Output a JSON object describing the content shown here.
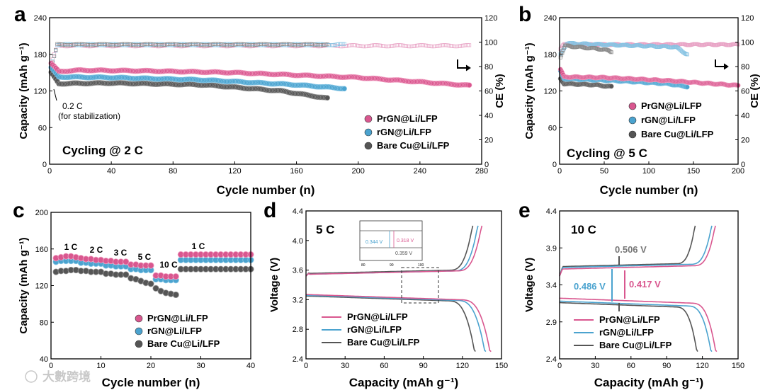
{
  "watermark": "大數跨境",
  "colors": {
    "pink": "#d9578f",
    "pink_light": "#f2a6c6",
    "blue": "#4ba3cf",
    "blue_light": "#8fcbe8",
    "gray": "#555555",
    "gray_light": "#9a9a9a",
    "ce_pink": "#e8a3c5",
    "ce_blue": "#87c3e3",
    "ce_gray": "#8a8a8a"
  },
  "chart_data": [
    {
      "panel": "a",
      "type": "scatter",
      "xlabel": "Cycle number (n)",
      "ylabel": "Capacity (mAh g⁻¹)",
      "y2label": "CE (%)",
      "xlim": [
        0,
        280
      ],
      "ylim": [
        0,
        240
      ],
      "y2lim": [
        0,
        120
      ],
      "xticks": [
        "0",
        "40",
        "80",
        "120",
        "160",
        "200",
        "240",
        "280"
      ],
      "yticks": [
        "0",
        "60",
        "120",
        "180",
        "240"
      ],
      "y2ticks": [
        "0",
        "20",
        "40",
        "60",
        "80",
        "100",
        "120"
      ],
      "annotation": "Cycling @ 2 C",
      "note": [
        "0.2 C",
        "(for stabilization)"
      ],
      "legend": [
        "PrGN@Li/LFP",
        "rGN@Li/LFP",
        "Bare Cu@Li/LFP"
      ],
      "series": [
        {
          "name": "PrGN@Li/LFP",
          "cycles": 272,
          "capacity": [
            [
              1,
              165
            ],
            [
              6,
              152
            ],
            [
              20,
              154
            ],
            [
              60,
              153
            ],
            [
              120,
              150
            ],
            [
              200,
              142
            ],
            [
              272,
              129
            ]
          ],
          "ce": [
            [
              1,
              82
            ],
            [
              5,
              97
            ],
            [
              272,
              97
            ]
          ]
        },
        {
          "name": "rGN@Li/LFP",
          "cycles": 191,
          "capacity": [
            [
              1,
              158
            ],
            [
              6,
              143
            ],
            [
              40,
              142
            ],
            [
              100,
              138
            ],
            [
              160,
              130
            ],
            [
              191,
              124
            ]
          ],
          "ce": [
            [
              1,
              80
            ],
            [
              5,
              98
            ],
            [
              191,
              98
            ]
          ]
        },
        {
          "name": "Bare Cu@Li/LFP",
          "cycles": 180,
          "capacity": [
            [
              1,
              150
            ],
            [
              6,
              132
            ],
            [
              40,
              133
            ],
            [
              100,
              130
            ],
            [
              150,
              120
            ],
            [
              180,
              108
            ]
          ],
          "ce": [
            [
              1,
              78
            ],
            [
              5,
              98
            ],
            [
              180,
              98
            ]
          ]
        }
      ]
    },
    {
      "panel": "b",
      "type": "scatter",
      "xlabel": "Cycle number (n)",
      "ylabel": "Capacity (mAh g⁻¹)",
      "y2label": "CE (%)",
      "xlim": [
        0,
        200
      ],
      "ylim": [
        0,
        240
      ],
      "y2lim": [
        0,
        120
      ],
      "xticks": [
        "0",
        "25",
        "50",
        "75",
        "100",
        "125",
        "150",
        "175",
        "200"
      ],
      "yticks": [
        "0",
        "60",
        "120",
        "180",
        "240"
      ],
      "y2ticks": [
        "0",
        "20",
        "40",
        "60",
        "80",
        "100",
        "120"
      ],
      "annotation": "Cycling @ 5 C",
      "legend": [
        "PrGN@Li/LFP",
        "rGN@Li/LFP",
        "Bare Cu@Li/LFP"
      ],
      "series": [
        {
          "name": "PrGN@Li/LFP",
          "cycles": 200,
          "capacity": [
            [
              1,
              155
            ],
            [
              5,
              143
            ],
            [
              50,
              142
            ],
            [
              120,
              137
            ],
            [
              200,
              129
            ]
          ],
          "ce": [
            [
              1,
              94
            ],
            [
              5,
              98
            ],
            [
              200,
              98
            ]
          ]
        },
        {
          "name": "rGN@Li/LFP",
          "cycles": 143,
          "capacity": [
            [
              1,
              152
            ],
            [
              5,
              140
            ],
            [
              60,
              137
            ],
            [
              120,
              132
            ],
            [
              143,
              127
            ]
          ],
          "ce": [
            [
              1,
              90
            ],
            [
              8,
              99
            ],
            [
              130,
              96
            ],
            [
              143,
              90
            ]
          ]
        },
        {
          "name": "Bare Cu@Li/LFP",
          "cycles": 58,
          "capacity": [
            [
              1,
              140
            ],
            [
              5,
              132
            ],
            [
              40,
              130
            ],
            [
              58,
              127
            ]
          ],
          "ce": [
            [
              1,
              88
            ],
            [
              6,
              97
            ],
            [
              50,
              94
            ],
            [
              58,
              92
            ]
          ]
        }
      ]
    },
    {
      "panel": "c",
      "type": "scatter",
      "xlabel": "Cycle number (n)",
      "ylabel": "Capacity (mAh g⁻¹)",
      "xlim": [
        0,
        40
      ],
      "ylim": [
        40,
        200
      ],
      "xticks": [
        "0",
        "10",
        "20",
        "30",
        "40"
      ],
      "yticks": [
        "40",
        "80",
        "120",
        "160",
        "200"
      ],
      "rate_labels": [
        "1 C",
        "2 C",
        "3 C",
        "5 C",
        "10 C",
        "1 C"
      ],
      "legend": [
        "PrGN@Li/LFP",
        "rGN@Li/LFP",
        "Bare Cu@Li/LFP"
      ],
      "series": [
        {
          "name": "PrGN@Li/LFP",
          "capacity": [
            150,
            151,
            152,
            152,
            151,
            150,
            149,
            149,
            148,
            148,
            147,
            147,
            146,
            146,
            146,
            143,
            143,
            142,
            142,
            142,
            131,
            131,
            130,
            130,
            130,
            154,
            154,
            154,
            154,
            154,
            154,
            154,
            154,
            154,
            154,
            154,
            154,
            154,
            154,
            154
          ]
        },
        {
          "name": "rGN@Li/LFP",
          "capacity": [
            146,
            147,
            147,
            147,
            147,
            145,
            145,
            144,
            144,
            144,
            142,
            142,
            141,
            141,
            141,
            138,
            138,
            137,
            137,
            137,
            127,
            127,
            126,
            126,
            126,
            148,
            148,
            148,
            148,
            148,
            148,
            148,
            148,
            148,
            148,
            148,
            148,
            148,
            148,
            148
          ]
        },
        {
          "name": "Bare Cu@Li/LFP",
          "capacity": [
            135,
            136,
            136,
            137,
            137,
            136,
            136,
            135,
            135,
            135,
            133,
            133,
            132,
            132,
            132,
            128,
            127,
            125,
            123,
            122,
            117,
            114,
            112,
            111,
            110,
            138,
            138,
            138,
            138,
            138,
            138,
            138,
            138,
            138,
            138,
            138,
            138,
            138,
            138,
            138
          ]
        }
      ]
    },
    {
      "panel": "d",
      "type": "line",
      "xlabel": "Capacity (mAh g⁻¹)",
      "ylabel": "Voltage (V)",
      "xlim": [
        0,
        150
      ],
      "ylim": [
        2.4,
        4.4
      ],
      "xticks": [
        "0",
        "30",
        "60",
        "90",
        "120",
        "150"
      ],
      "yticks": [
        "2.4",
        "2.8",
        "3.2",
        "3.6",
        "4.0",
        "4.4"
      ],
      "annotation": "5 C",
      "legend": [
        "PrGN@Li/LFP",
        "rGN@Li/LFP",
        "Bare Cu@Li/LFP"
      ],
      "inset": {
        "xticks": [
          "80",
          "90",
          "100"
        ],
        "labels": [
          "0.344 V",
          "0.318 V",
          "0.359 V"
        ]
      },
      "series": [
        {
          "name": "PrGN@Li/LFP",
          "charge_end": 135,
          "discharge_end": 142,
          "plateau_charge": 3.57,
          "plateau_discharge": 3.27
        },
        {
          "name": "rGN@Li/LFP",
          "charge_end": 132,
          "discharge_end": 138,
          "plateau_charge": 3.57,
          "plateau_discharge": 3.26
        },
        {
          "name": "Bare Cu@Li/LFP",
          "charge_end": 128,
          "discharge_end": 130,
          "plateau_charge": 3.58,
          "plateau_discharge": 3.25
        }
      ]
    },
    {
      "panel": "e",
      "type": "line",
      "xlabel": "Capacity (mAh g⁻¹)",
      "ylabel": "Voltage (V)",
      "xlim": [
        0,
        150
      ],
      "ylim": [
        2.4,
        4.4
      ],
      "xticks": [
        "0",
        "30",
        "60",
        "90",
        "120",
        "150"
      ],
      "yticks": [
        "2.4",
        "2.9",
        "3.4",
        "3.9",
        "4.4"
      ],
      "annotation": "10 C",
      "legend": [
        "PrGN@Li/LFP",
        "rGN@Li/LFP",
        "Bare Cu@Li/LFP"
      ],
      "gaps": [
        "0.506 V",
        "0.486 V",
        "0.417 V"
      ],
      "series": [
        {
          "name": "PrGN@Li/LFP",
          "charge_end": 131,
          "discharge_end": 132,
          "plateau_charge": 3.64,
          "plateau_discharge": 3.22
        },
        {
          "name": "rGN@Li/LFP",
          "charge_end": 128,
          "discharge_end": 128,
          "plateau_charge": 3.66,
          "plateau_discharge": 3.18
        },
        {
          "name": "Bare Cu@Li/LFP",
          "charge_end": 114,
          "discharge_end": 116,
          "plateau_charge": 3.67,
          "plateau_discharge": 3.16
        }
      ]
    }
  ]
}
